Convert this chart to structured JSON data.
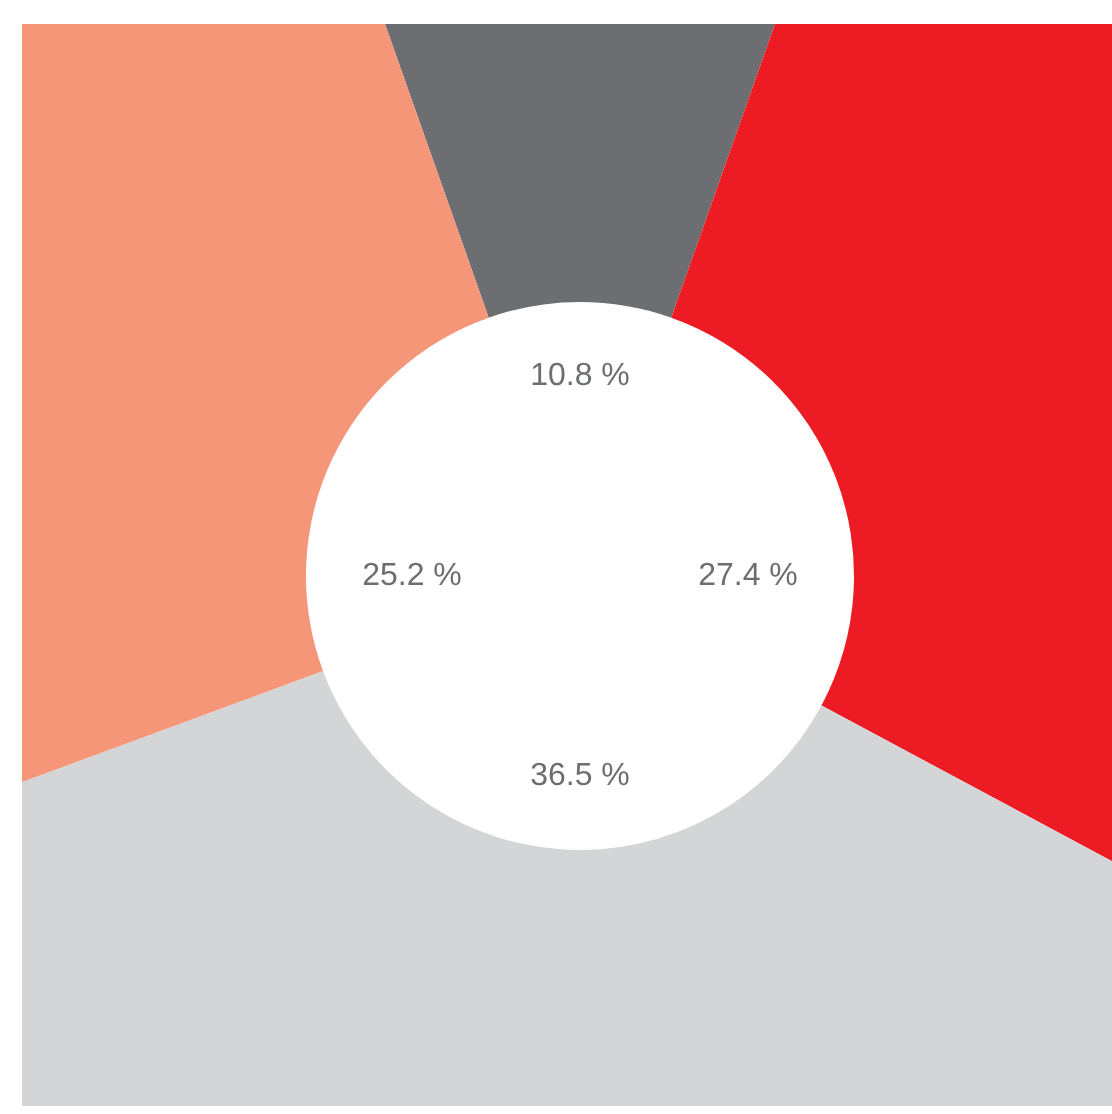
{
  "chart_data": {
    "type": "donut",
    "categories": [
      null,
      null,
      null,
      null
    ],
    "values": [
      10.8,
      27.4,
      36.5,
      25.2
    ],
    "colors": [
      "#6d6e71",
      "#ed1c24",
      "#d4d5d7",
      "#f69679"
    ],
    "value_labels": [
      "10.8 %",
      "27.4 %",
      "36.5 %",
      "25.2 %"
    ]
  }
}
